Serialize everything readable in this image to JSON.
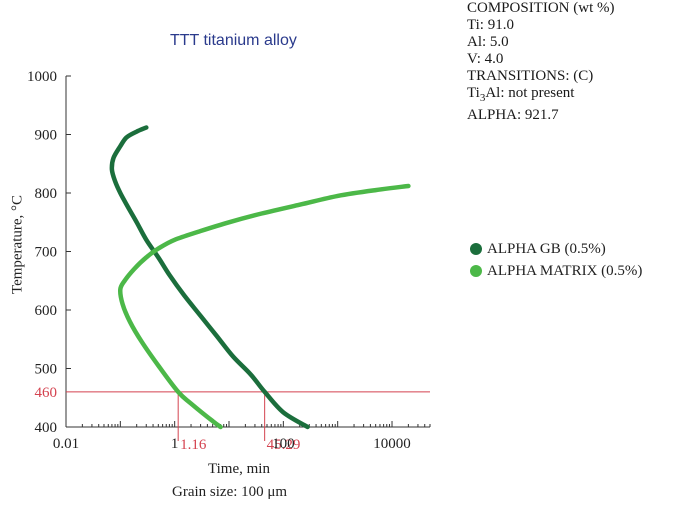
{
  "chart_data": {
    "type": "line",
    "title": "TTT titanium alloy",
    "xlabel": "Time, min",
    "ylabel": "Temperature, °C",
    "footer": "Grain size: 100 μm",
    "x_scale": "log",
    "xlim": [
      0.01,
      50000
    ],
    "ylim": [
      400,
      1000
    ],
    "x_ticks": [
      0.01,
      1,
      100,
      10000
    ],
    "x_tick_labels": [
      "0.01",
      "1",
      "100",
      "10000"
    ],
    "y_ticks": [
      400,
      500,
      600,
      700,
      800,
      900,
      1000
    ],
    "y_tick_labels": [
      "400",
      "500",
      "600",
      "700",
      "800",
      "900",
      "1000"
    ],
    "series": [
      {
        "name": "ALPHA GB (0.5%)",
        "color": "#1b6e3c",
        "points": [
          [
            0.3,
            912
          ],
          [
            0.2,
            905
          ],
          [
            0.13,
            895
          ],
          [
            0.1,
            880
          ],
          [
            0.075,
            860
          ],
          [
            0.07,
            840
          ],
          [
            0.08,
            820
          ],
          [
            0.1,
            800
          ],
          [
            0.14,
            775
          ],
          [
            0.2,
            750
          ],
          [
            0.3,
            720
          ],
          [
            0.5,
            690
          ],
          [
            0.8,
            660
          ],
          [
            1.5,
            625
          ],
          [
            3,
            590
          ],
          [
            6,
            555
          ],
          [
            12,
            520
          ],
          [
            25,
            490
          ],
          [
            45.29,
            460
          ],
          [
            100,
            425
          ],
          [
            280,
            400
          ]
        ]
      },
      {
        "name": "ALPHA MATRIX (0.5%)",
        "color": "#4cb848",
        "points": [
          [
            20000,
            812
          ],
          [
            5000,
            805
          ],
          [
            1000,
            795
          ],
          [
            200,
            780
          ],
          [
            40,
            765
          ],
          [
            10,
            750
          ],
          [
            3,
            735
          ],
          [
            1,
            720
          ],
          [
            0.5,
            705
          ],
          [
            0.3,
            690
          ],
          [
            0.18,
            670
          ],
          [
            0.12,
            650
          ],
          [
            0.1,
            635
          ],
          [
            0.11,
            610
          ],
          [
            0.15,
            580
          ],
          [
            0.25,
            545
          ],
          [
            0.5,
            505
          ],
          [
            1.16,
            460
          ],
          [
            2,
            440
          ],
          [
            5,
            410
          ],
          [
            7,
            400
          ]
        ]
      }
    ],
    "annotations": [
      {
        "type": "hline",
        "y": 460,
        "label": "460",
        "color": "#d4424f"
      },
      {
        "type": "vline",
        "x": 1.16,
        "label": "1.16",
        "color": "#d4424f"
      },
      {
        "type": "vline",
        "x": 45.29,
        "label": "45.29",
        "color": "#d4424f"
      }
    ]
  },
  "composition": {
    "header": "COMPOSITION (wt %)",
    "lines": [
      "Ti: 91.0",
      "Al: 5.0",
      "V: 4.0"
    ]
  },
  "transitions": {
    "header": "TRANSITIONS: (C)",
    "ti3al": "Ti3Al: not present",
    "alpha": "ALPHA: 921.7"
  }
}
